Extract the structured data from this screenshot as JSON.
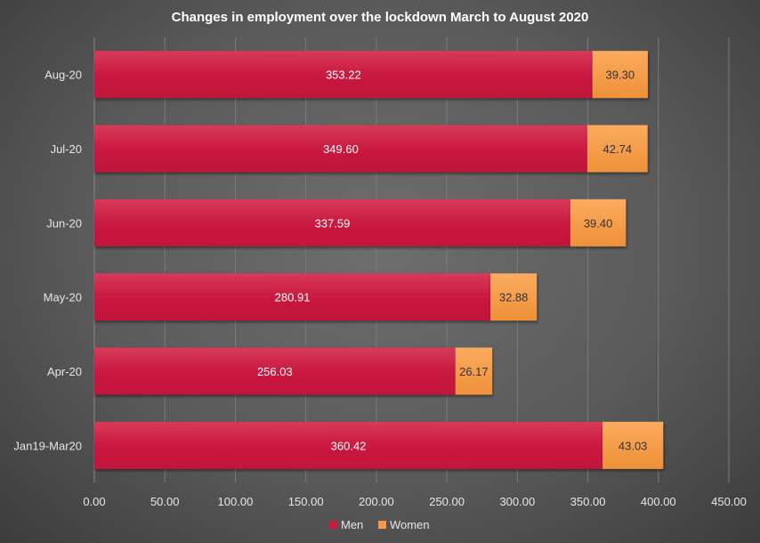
{
  "chart_data": {
    "type": "bar",
    "orientation": "horizontal",
    "stacked": true,
    "title": "Changes in  employment over the lockdown March to August 2020",
    "categories": [
      "Jan19-Mar20",
      "Apr-20",
      "May-20",
      "Jun-20",
      "Jul-20",
      "Aug-20"
    ],
    "series": [
      {
        "name": "Men",
        "color": "#c91a40",
        "values": [
          360.42,
          256.03,
          280.91,
          337.59,
          349.6,
          353.22
        ]
      },
      {
        "name": "Women",
        "color": "#f39b48",
        "values": [
          43.03,
          26.17,
          32.88,
          39.4,
          42.74,
          39.3
        ]
      }
    ],
    "xlim": [
      0,
      450
    ],
    "xticks": [
      "0.00",
      "50.00",
      "100.00",
      "150.00",
      "200.00",
      "250.00",
      "300.00",
      "350.00",
      "400.00",
      "450.00"
    ],
    "grid": true,
    "legend": "bottom"
  }
}
